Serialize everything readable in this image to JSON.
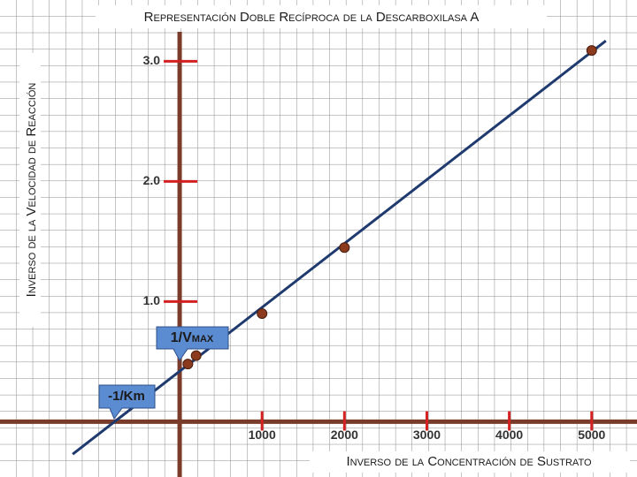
{
  "chart_data": {
    "type": "scatter",
    "title": "Representación Doble Recíproca de la Descarboxilasa A",
    "x_label": "Inverso de la Concentración de Sustrato",
    "y_label": "Inverso de la Velocidad de Reacción",
    "x": [
      100,
      200,
      1000,
      2000,
      5000
    ],
    "values": [
      0.48,
      0.55,
      0.9,
      1.45,
      3.09
    ],
    "color": "#8b3a1e",
    "fit_line": {
      "x": [
        -1298,
        5172
      ],
      "y": [
        -0.27,
        3.17
      ],
      "color": "#1f3a6e"
    },
    "xlim": [
      -2180,
      5550
    ],
    "ylim": [
      -0.46,
      3.51
    ],
    "xticks": [
      1000,
      2000,
      3000,
      4000,
      5000
    ],
    "yticks": [
      {
        "value": 1,
        "label": "1.0"
      },
      {
        "value": 2,
        "label": "2.0"
      },
      {
        "value": 3,
        "label": "3.0"
      }
    ],
    "annotations": [
      "1/Vmax",
      "-1/Km"
    ]
  }
}
